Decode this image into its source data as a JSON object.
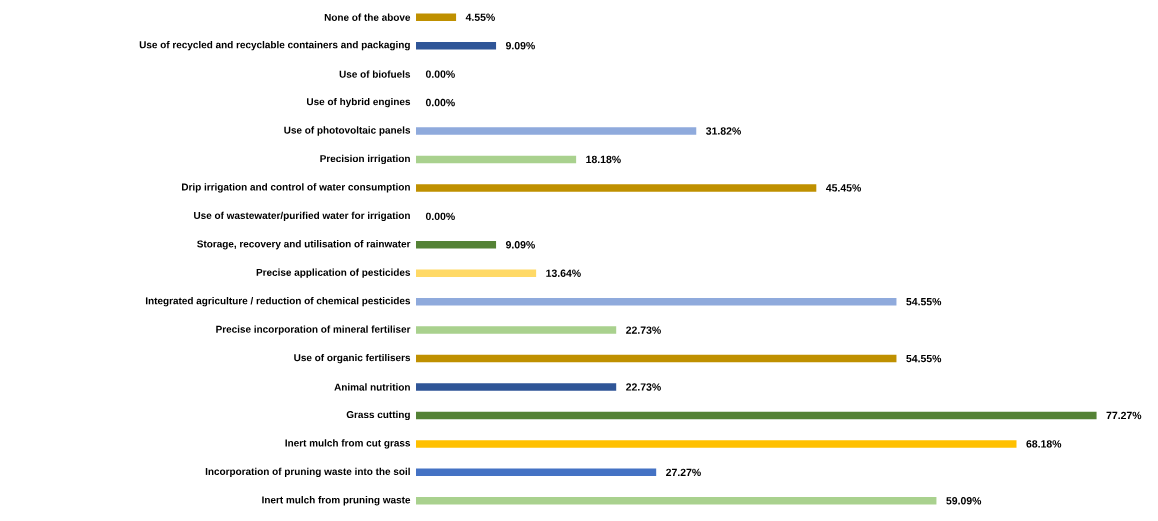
{
  "chart_data": {
    "type": "bar",
    "orientation": "horizontal",
    "categories": [
      "None of the above",
      "Use of recycled and recyclable containers and packaging",
      "Use of biofuels",
      "Use of hybrid engines",
      "Use of photovoltaic panels",
      "Precision irrigation",
      "Drip irrigation and control of water consumption",
      "Use of wastewater/purified water for irrigation",
      "Storage, recovery and utilisation of rainwater",
      "Precise application of pesticides",
      "Integrated agriculture / reduction of chemical pesticides",
      "Precise incorporation of mineral fertiliser",
      "Use of organic fertilisers",
      "Animal nutrition",
      "Grass cutting",
      "Inert mulch from cut grass",
      "Incorporation of pruning waste into the soil",
      "Inert mulch from pruning waste"
    ],
    "values": [
      4.55,
      9.09,
      0,
      0,
      31.82,
      18.18,
      45.45,
      0,
      9.09,
      13.64,
      54.55,
      22.73,
      54.55,
      22.73,
      77.27,
      68.18,
      27.27,
      59.09
    ],
    "value_labels": [
      "4.55%",
      "9.09%",
      "0.00%",
      "0.00%",
      "31.82%",
      "18.18%",
      "45.45%",
      "0.00%",
      "9.09%",
      "13.64%",
      "54.55%",
      "22.73%",
      "54.55%",
      "22.73%",
      "77.27%",
      "68.18%",
      "27.27%",
      "59.09%"
    ],
    "colors": [
      "#bf9000",
      "#2f5597",
      "#8faadc",
      "#a9d18e",
      "#8faadc",
      "#a9d18e",
      "#bf9000",
      "#548235",
      "#548235",
      "#ffd966",
      "#8faadc",
      "#a9d18e",
      "#bf9000",
      "#2f5597",
      "#548235",
      "#ffc000",
      "#4472c4",
      "#a9d18e"
    ]
  }
}
